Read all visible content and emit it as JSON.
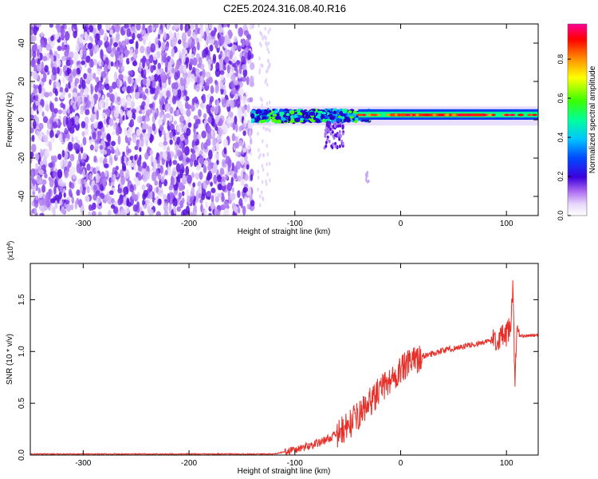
{
  "title": "C2E5.2024.316.08.40.R16",
  "colorbar": {
    "label": "Normalized spectral amplitude",
    "ticks": [
      {
        "value": 0.0,
        "label": "0.0"
      },
      {
        "value": 0.2,
        "label": "0.2"
      },
      {
        "value": 0.4,
        "label": "0.4"
      },
      {
        "value": 0.6,
        "label": "0.6"
      },
      {
        "value": 0.8,
        "label": "0.8"
      }
    ],
    "colors": [
      "#ffffff",
      "#b06ef2",
      "#3a00e0",
      "#0044ff",
      "#00c8ff",
      "#00ff8c",
      "#30ff00",
      "#ffff00",
      "#ff8c00",
      "#ff0000",
      "#ff0090"
    ]
  },
  "chart_data": [
    {
      "type": "heatmap",
      "title": "C2E5.2024.316.08.40.R16",
      "xlabel": "Height of straight line (km)",
      "ylabel": "Frequency (Hz)",
      "xlim": [
        -350,
        130
      ],
      "ylim": [
        -50,
        50
      ],
      "xticks": [
        {
          "value": -300,
          "label": "-300"
        },
        {
          "value": -200,
          "label": "-200"
        },
        {
          "value": -100,
          "label": "-100"
        },
        {
          "value": 0,
          "label": "0"
        },
        {
          "value": 100,
          "label": "100"
        }
      ],
      "yticks": [
        {
          "value": -40,
          "label": "-40"
        },
        {
          "value": -20,
          "label": "-20"
        },
        {
          "value": 0,
          "label": "0"
        },
        {
          "value": 20,
          "label": "20"
        },
        {
          "value": 40,
          "label": "40"
        }
      ],
      "colorscale": "normalized spectral amplitude 0-1",
      "regions": [
        {
          "x_range": [
            -350,
            -140
          ],
          "freq_range": [
            -50,
            50
          ],
          "amplitude": "0.05-0.25",
          "pattern": "scattered noise"
        },
        {
          "x_range": [
            -135,
            -120
          ],
          "freq_range": [
            -50,
            50
          ],
          "amplitude": "0.0-0.1",
          "pattern": "faint noise strip"
        },
        {
          "x_range": [
            -140,
            -30
          ],
          "freq_range": [
            -2,
            6
          ],
          "amplitude": "0.2-0.6",
          "pattern": "broadened signal"
        },
        {
          "x_range": [
            -70,
            -55
          ],
          "freq_range": [
            -15,
            0
          ],
          "amplitude": "0.1-0.3",
          "pattern": "downward spread"
        },
        {
          "x_range": [
            -40,
            130
          ],
          "freq_range": [
            1,
            4
          ],
          "amplitude": "0.7-1.0",
          "pattern": "narrow carrier line"
        }
      ]
    },
    {
      "type": "line",
      "xlabel": "Height of straight line (km)",
      "ylabel": "SNR (10 * v/v)",
      "y_multiplier": "(x10^4)",
      "xlim": [
        -350,
        130
      ],
      "ylim": [
        0,
        1.85
      ],
      "xticks": [
        {
          "value": -300,
          "label": "-300"
        },
        {
          "value": -200,
          "label": "-200"
        },
        {
          "value": -100,
          "label": "-100"
        },
        {
          "value": 0,
          "label": "0"
        },
        {
          "value": 100,
          "label": "100"
        }
      ],
      "yticks": [
        {
          "value": 0.0,
          "label": "0.0"
        },
        {
          "value": 0.5,
          "label": "0.5"
        },
        {
          "value": 1.0,
          "label": "1.0"
        },
        {
          "value": 1.5,
          "label": "1.5"
        }
      ],
      "color": "#e8302a",
      "series": [
        {
          "x": [
            -350,
            -300,
            -250,
            -200,
            -150,
            -120,
            -110,
            -100,
            -90,
            -80,
            -70,
            -60,
            -50,
            -40,
            -30,
            -20,
            -10,
            0,
            10,
            20,
            30,
            40,
            50,
            60,
            70,
            80,
            90,
            100,
            104,
            106,
            108,
            110,
            120,
            130
          ],
          "y": [
            0.01,
            0.01,
            0.01,
            0.01,
            0.01,
            0.01,
            0.03,
            0.05,
            0.08,
            0.11,
            0.15,
            0.2,
            0.28,
            0.38,
            0.5,
            0.62,
            0.72,
            0.82,
            0.9,
            0.95,
            0.98,
            1.01,
            1.03,
            1.05,
            1.07,
            1.09,
            1.12,
            1.15,
            1.25,
            1.6,
            0.75,
            1.15,
            1.15,
            1.16
          ]
        }
      ]
    }
  ]
}
